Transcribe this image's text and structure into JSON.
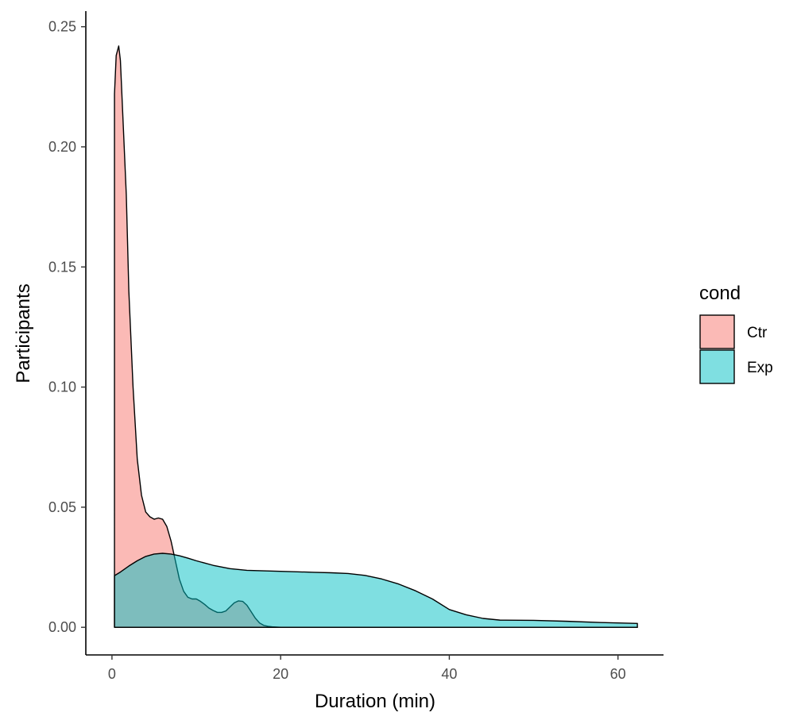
{
  "chart_data": {
    "type": "area",
    "subtype": "density",
    "title": "",
    "xlabel": "Duration (min)",
    "ylabel": "Participants",
    "xlim": [
      -3.1,
      65.4
    ],
    "ylim": [
      -0.0115,
      0.2565
    ],
    "xticks": [
      0,
      20,
      40,
      60
    ],
    "xtick_labels": [
      "0",
      "20",
      "40",
      "60"
    ],
    "yticks": [
      0,
      0.05,
      0.1,
      0.15,
      0.2,
      0.25
    ],
    "ytick_labels": [
      "0.00",
      "0.05",
      "0.10",
      "0.15",
      "0.20",
      "0.25"
    ],
    "grid": false,
    "legend": {
      "title": "cond",
      "position": "right"
    },
    "series": [
      {
        "name": "Ctr",
        "color": "#F8766D",
        "x": [
          0.3,
          0.5,
          0.8,
          1.0,
          1.3,
          1.7,
          2.0,
          2.5,
          3.0,
          3.5,
          4.0,
          4.5,
          5.0,
          5.5,
          6.0,
          6.5,
          7.0,
          7.5,
          8.0,
          8.5,
          9.0,
          9.5,
          10.0,
          10.5,
          11.0,
          11.5,
          12.0,
          12.5,
          13.0,
          13.5,
          14.0,
          14.5,
          15.0,
          15.5,
          16.0,
          16.5,
          17.0,
          17.5,
          18.0,
          18.5,
          19.0,
          20.0,
          22.0,
          25.0,
          30.0,
          35.0,
          40.0,
          45.0,
          50.0,
          55.0,
          60.0,
          62.3
        ],
        "y": [
          0.222,
          0.238,
          0.242,
          0.236,
          0.212,
          0.18,
          0.14,
          0.1,
          0.07,
          0.055,
          0.048,
          0.046,
          0.045,
          0.0455,
          0.045,
          0.042,
          0.036,
          0.028,
          0.02,
          0.015,
          0.0125,
          0.0118,
          0.0118,
          0.0108,
          0.0095,
          0.008,
          0.007,
          0.0062,
          0.0062,
          0.0068,
          0.0085,
          0.0102,
          0.011,
          0.0108,
          0.0092,
          0.0065,
          0.0038,
          0.0018,
          0.0008,
          0.0004,
          0.0002,
          0.0,
          0.0,
          0.0,
          0.0,
          0.0,
          0.0,
          0.0,
          0.0,
          0.0,
          0.0,
          0.0
        ]
      },
      {
        "name": "Exp",
        "color": "#00BFC4",
        "x": [
          0.3,
          1.0,
          2.0,
          3.0,
          4.0,
          5.0,
          6.0,
          7.0,
          8.0,
          9.0,
          10.0,
          12.0,
          14.0,
          16.0,
          18.0,
          20.0,
          22.0,
          24.0,
          26.0,
          28.0,
          30.0,
          32.0,
          34.0,
          36.0,
          38.0,
          40.0,
          42.0,
          44.0,
          46.0,
          50.0,
          54.0,
          58.0,
          62.3
        ],
        "y": [
          0.0215,
          0.023,
          0.0255,
          0.0277,
          0.0295,
          0.0305,
          0.0308,
          0.0305,
          0.0298,
          0.0288,
          0.0277,
          0.0258,
          0.0244,
          0.0237,
          0.0235,
          0.0233,
          0.0231,
          0.0229,
          0.0227,
          0.0224,
          0.0216,
          0.0201,
          0.018,
          0.0152,
          0.0118,
          0.0074,
          0.0052,
          0.0037,
          0.003,
          0.0029,
          0.0025,
          0.002,
          0.0016
        ]
      }
    ]
  }
}
